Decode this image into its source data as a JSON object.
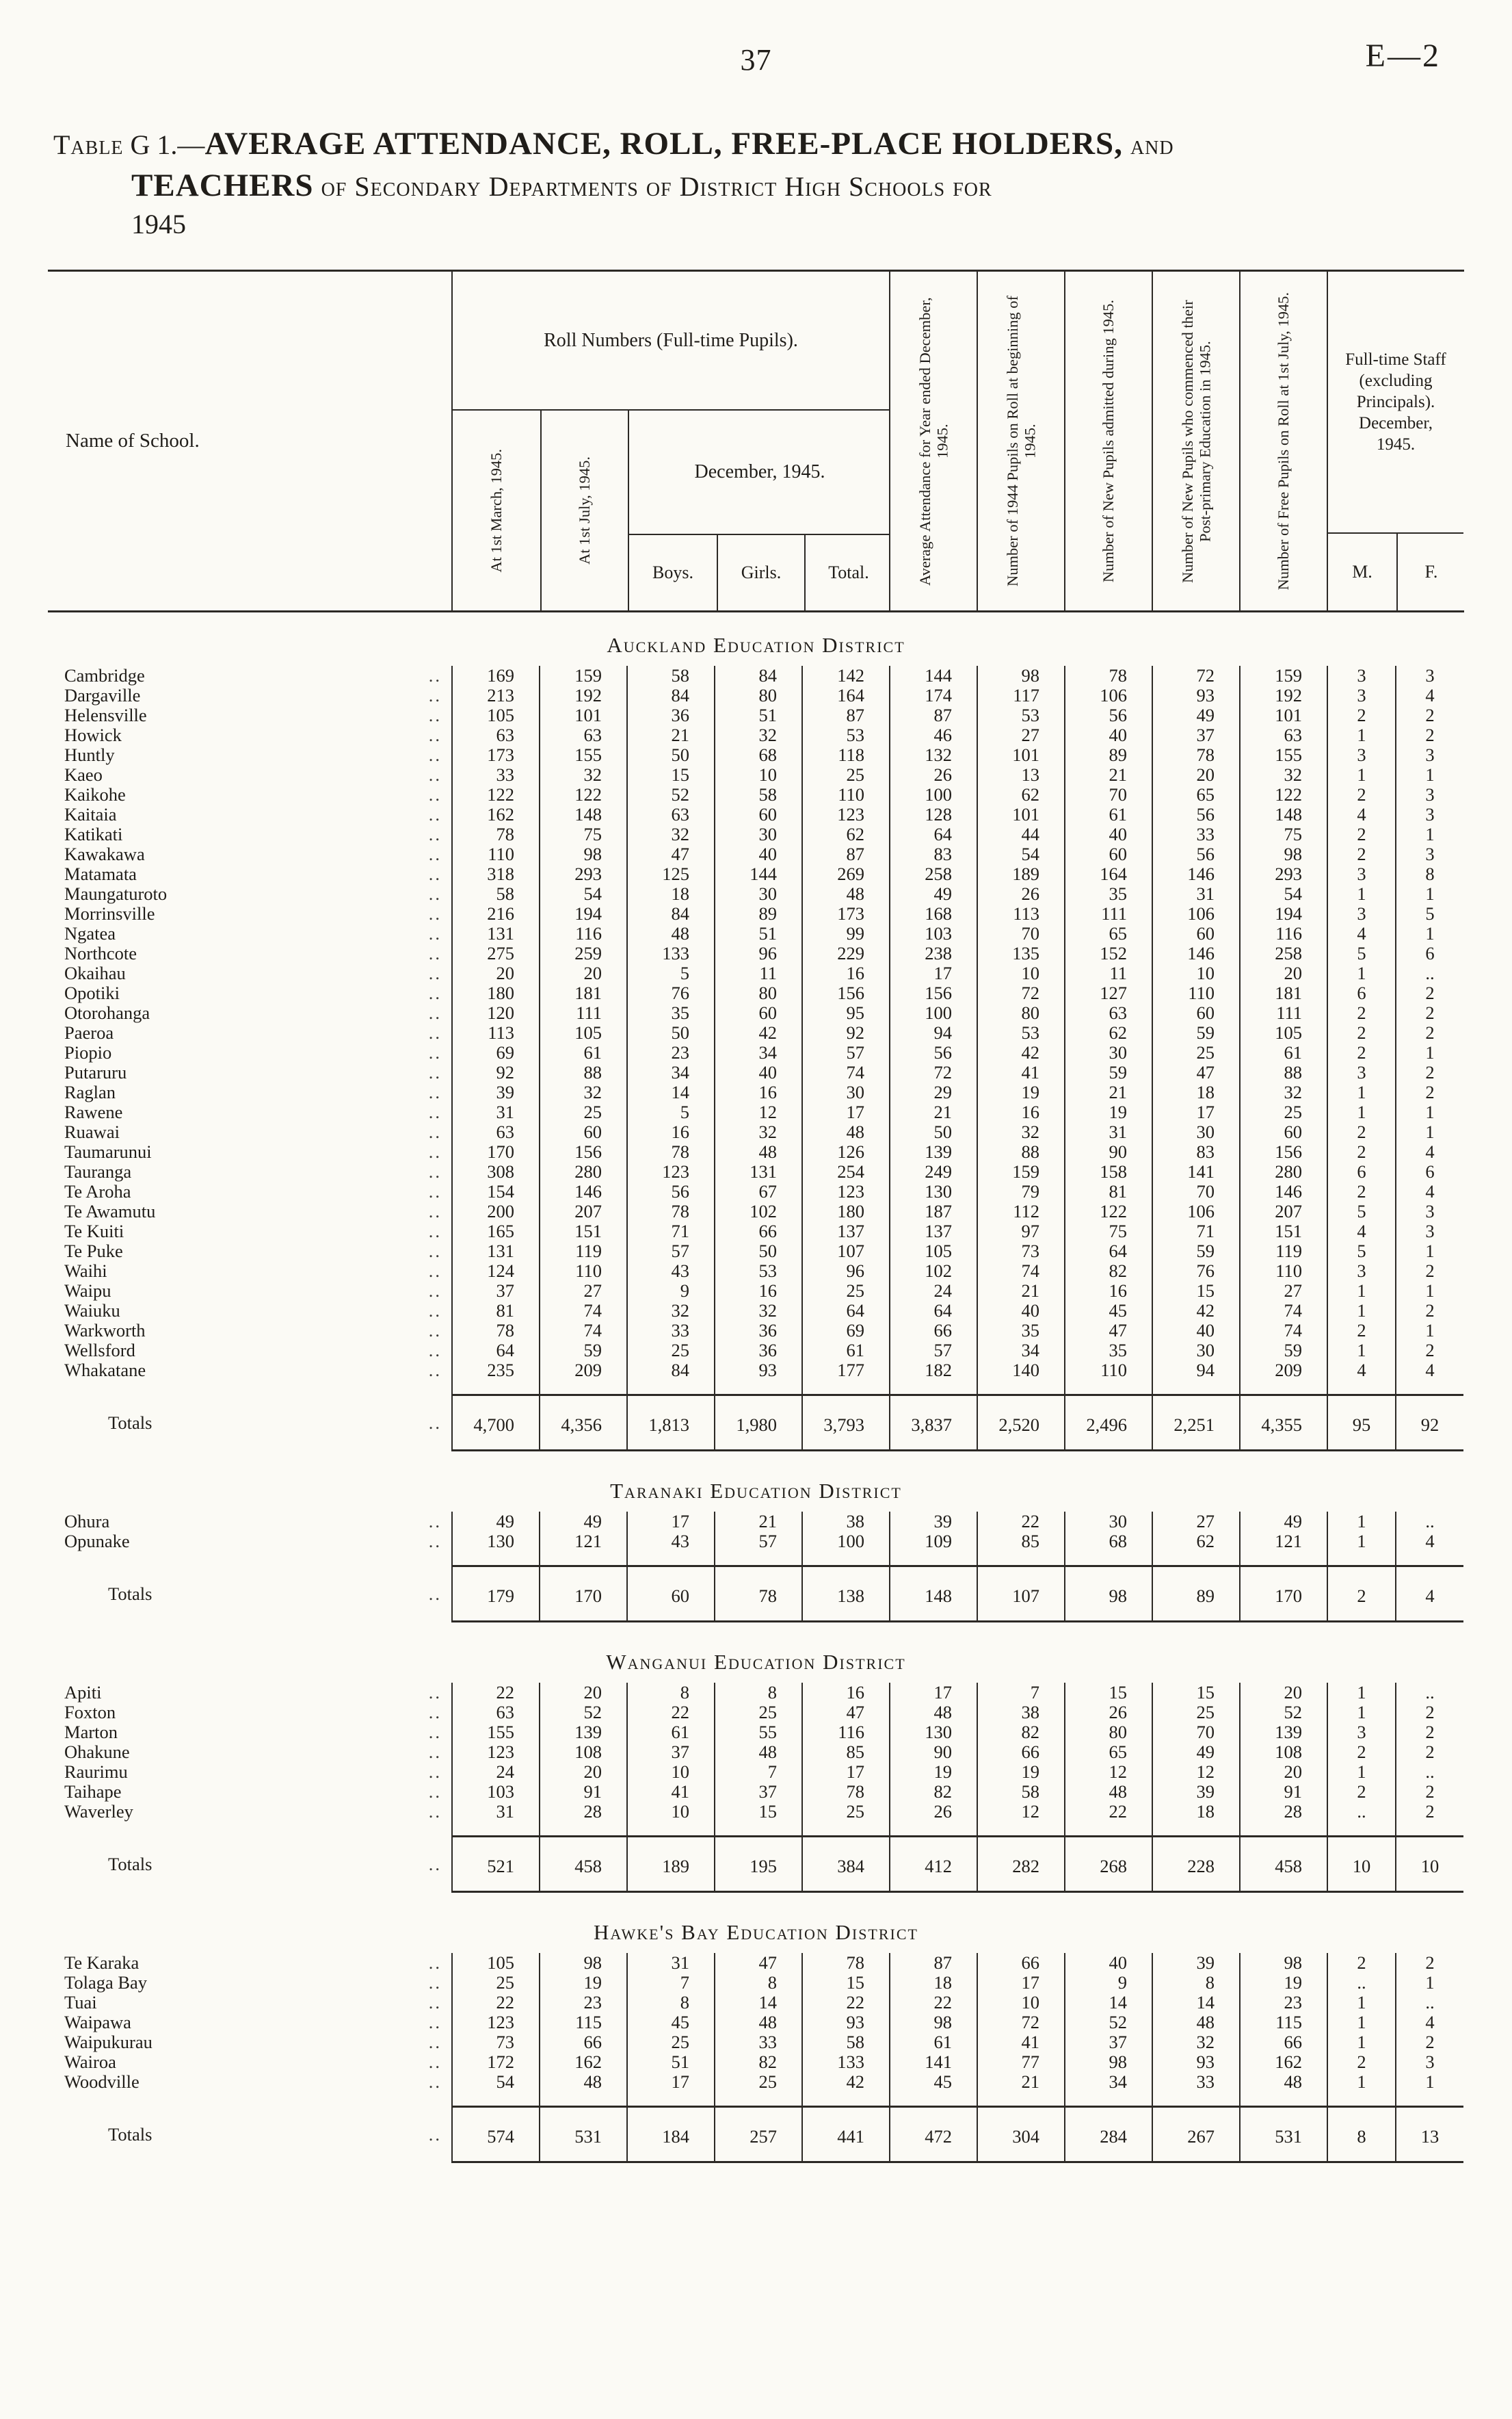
{
  "page": {
    "number": "37",
    "doc_ref": "E—2"
  },
  "title": {
    "line1_prefix": "Table",
    "line1_num": " G 1.—",
    "line1_bold": "AVERAGE ATTENDANCE, ROLL, FREE-PLACE HOLDERS,",
    "line1_and": " and",
    "line2_bold": "TEACHERS",
    "line2_rest": " of Secondary Departments of District High Schools for",
    "line3": "1945"
  },
  "table": {
    "leader": "..",
    "totals_label": "Totals",
    "columns": {
      "name": "Name of School.",
      "roll_group": "Roll Numbers (Full-time Pupils).",
      "march": "At 1st March, 1945.",
      "july": "At 1st July, 1945.",
      "december_group": "December, 1945.",
      "boys": "Boys.",
      "girls": "Girls.",
      "total": "Total.",
      "avg_attendance": "Average Attendance for Year ended December, 1945.",
      "pupils_1944": "Number of 1944 Pupils on Roll at beginning of 1945.",
      "new_pupils": "Number of New Pupils admitted during 1945.",
      "new_postprimary": "Number of New Pupils who commenced their Post-primary Education in 1945.",
      "free_pupils": "Number of Free Pupils on Roll at 1st July, 1945.",
      "staff_group": "Full-time Staff (excluding Principals). December, 1945.",
      "m": "M.",
      "f": "F."
    },
    "sections": [
      {
        "name": "Auckland Education District",
        "rows": [
          [
            "Cambridge",
            "169",
            "159",
            "58",
            "84",
            "142",
            "144",
            "98",
            "78",
            "72",
            "159",
            "3",
            "3"
          ],
          [
            "Dargaville",
            "213",
            "192",
            "84",
            "80",
            "164",
            "174",
            "117",
            "106",
            "93",
            "192",
            "3",
            "4"
          ],
          [
            "Helensville",
            "105",
            "101",
            "36",
            "51",
            "87",
            "87",
            "53",
            "56",
            "49",
            "101",
            "2",
            "2"
          ],
          [
            "Howick",
            "63",
            "63",
            "21",
            "32",
            "53",
            "46",
            "27",
            "40",
            "37",
            "63",
            "1",
            "2"
          ],
          [
            "Huntly",
            "173",
            "155",
            "50",
            "68",
            "118",
            "132",
            "101",
            "89",
            "78",
            "155",
            "3",
            "3"
          ],
          [
            "Kaeo",
            "33",
            "32",
            "15",
            "10",
            "25",
            "26",
            "13",
            "21",
            "20",
            "32",
            "1",
            "1"
          ],
          [
            "Kaikohe",
            "122",
            "122",
            "52",
            "58",
            "110",
            "100",
            "62",
            "70",
            "65",
            "122",
            "2",
            "3"
          ],
          [
            "Kaitaia",
            "162",
            "148",
            "63",
            "60",
            "123",
            "128",
            "101",
            "61",
            "56",
            "148",
            "4",
            "3"
          ],
          [
            "Katikati",
            "78",
            "75",
            "32",
            "30",
            "62",
            "64",
            "44",
            "40",
            "33",
            "75",
            "2",
            "1"
          ],
          [
            "Kawakawa",
            "110",
            "98",
            "47",
            "40",
            "87",
            "83",
            "54",
            "60",
            "56",
            "98",
            "2",
            "3"
          ],
          [
            "Matamata",
            "318",
            "293",
            "125",
            "144",
            "269",
            "258",
            "189",
            "164",
            "146",
            "293",
            "3",
            "8"
          ],
          [
            "Maungaturoto",
            "58",
            "54",
            "18",
            "30",
            "48",
            "49",
            "26",
            "35",
            "31",
            "54",
            "1",
            "1"
          ],
          [
            "Morrinsville",
            "216",
            "194",
            "84",
            "89",
            "173",
            "168",
            "113",
            "111",
            "106",
            "194",
            "3",
            "5"
          ],
          [
            "Ngatea",
            "131",
            "116",
            "48",
            "51",
            "99",
            "103",
            "70",
            "65",
            "60",
            "116",
            "4",
            "1"
          ],
          [
            "Northcote",
            "275",
            "259",
            "133",
            "96",
            "229",
            "238",
            "135",
            "152",
            "146",
            "258",
            "5",
            "6"
          ],
          [
            "Okaihau",
            "20",
            "20",
            "5",
            "11",
            "16",
            "17",
            "10",
            "11",
            "10",
            "20",
            "1",
            ".."
          ],
          [
            "Opotiki",
            "180",
            "181",
            "76",
            "80",
            "156",
            "156",
            "72",
            "127",
            "110",
            "181",
            "6",
            "2"
          ],
          [
            "Otorohanga",
            "120",
            "111",
            "35",
            "60",
            "95",
            "100",
            "80",
            "63",
            "60",
            "111",
            "2",
            "2"
          ],
          [
            "Paeroa",
            "113",
            "105",
            "50",
            "42",
            "92",
            "94",
            "53",
            "62",
            "59",
            "105",
            "2",
            "2"
          ],
          [
            "Piopio",
            "69",
            "61",
            "23",
            "34",
            "57",
            "56",
            "42",
            "30",
            "25",
            "61",
            "2",
            "1"
          ],
          [
            "Putaruru",
            "92",
            "88",
            "34",
            "40",
            "74",
            "72",
            "41",
            "59",
            "47",
            "88",
            "3",
            "2"
          ],
          [
            "Raglan",
            "39",
            "32",
            "14",
            "16",
            "30",
            "29",
            "19",
            "21",
            "18",
            "32",
            "1",
            "2"
          ],
          [
            "Rawene",
            "31",
            "25",
            "5",
            "12",
            "17",
            "21",
            "16",
            "19",
            "17",
            "25",
            "1",
            "1"
          ],
          [
            "Ruawai",
            "63",
            "60",
            "16",
            "32",
            "48",
            "50",
            "32",
            "31",
            "30",
            "60",
            "2",
            "1"
          ],
          [
            "Taumarunui",
            "170",
            "156",
            "78",
            "48",
            "126",
            "139",
            "88",
            "90",
            "83",
            "156",
            "2",
            "4"
          ],
          [
            "Tauranga",
            "308",
            "280",
            "123",
            "131",
            "254",
            "249",
            "159",
            "158",
            "141",
            "280",
            "6",
            "6"
          ],
          [
            "Te Aroha",
            "154",
            "146",
            "56",
            "67",
            "123",
            "130",
            "79",
            "81",
            "70",
            "146",
            "2",
            "4"
          ],
          [
            "Te Awamutu",
            "200",
            "207",
            "78",
            "102",
            "180",
            "187",
            "112",
            "122",
            "106",
            "207",
            "5",
            "3"
          ],
          [
            "Te Kuiti",
            "165",
            "151",
            "71",
            "66",
            "137",
            "137",
            "97",
            "75",
            "71",
            "151",
            "4",
            "3"
          ],
          [
            "Te Puke",
            "131",
            "119",
            "57",
            "50",
            "107",
            "105",
            "73",
            "64",
            "59",
            "119",
            "5",
            "1"
          ],
          [
            "Waihi",
            "124",
            "110",
            "43",
            "53",
            "96",
            "102",
            "74",
            "82",
            "76",
            "110",
            "3",
            "2"
          ],
          [
            "Waipu",
            "37",
            "27",
            "9",
            "16",
            "25",
            "24",
            "21",
            "16",
            "15",
            "27",
            "1",
            "1"
          ],
          [
            "Waiuku",
            "81",
            "74",
            "32",
            "32",
            "64",
            "64",
            "40",
            "45",
            "42",
            "74",
            "1",
            "2"
          ],
          [
            "Warkworth",
            "78",
            "74",
            "33",
            "36",
            "69",
            "66",
            "35",
            "47",
            "40",
            "74",
            "2",
            "1"
          ],
          [
            "Wellsford",
            "64",
            "59",
            "25",
            "36",
            "61",
            "57",
            "34",
            "35",
            "30",
            "59",
            "1",
            "2"
          ],
          [
            "Whakatane",
            "235",
            "209",
            "84",
            "93",
            "177",
            "182",
            "140",
            "110",
            "94",
            "209",
            "4",
            "4"
          ]
        ],
        "totals": [
          "4,700",
          "4,356",
          "1,813",
          "1,980",
          "3,793",
          "3,837",
          "2,520",
          "2,496",
          "2,251",
          "4,355",
          "95",
          "92"
        ]
      },
      {
        "name": "Taranaki Education District",
        "rows": [
          [
            "Ohura",
            "49",
            "49",
            "17",
            "21",
            "38",
            "39",
            "22",
            "30",
            "27",
            "49",
            "1",
            ".."
          ],
          [
            "Opunake",
            "130",
            "121",
            "43",
            "57",
            "100",
            "109",
            "85",
            "68",
            "62",
            "121",
            "1",
            "4"
          ]
        ],
        "totals": [
          "179",
          "170",
          "60",
          "78",
          "138",
          "148",
          "107",
          "98",
          "89",
          "170",
          "2",
          "4"
        ]
      },
      {
        "name": "Wanganui Education District",
        "rows": [
          [
            "Apiti",
            "22",
            "20",
            "8",
            "8",
            "16",
            "17",
            "7",
            "15",
            "15",
            "20",
            "1",
            ".."
          ],
          [
            "Foxton",
            "63",
            "52",
            "22",
            "25",
            "47",
            "48",
            "38",
            "26",
            "25",
            "52",
            "1",
            "2"
          ],
          [
            "Marton",
            "155",
            "139",
            "61",
            "55",
            "116",
            "130",
            "82",
            "80",
            "70",
            "139",
            "3",
            "2"
          ],
          [
            "Ohakune",
            "123",
            "108",
            "37",
            "48",
            "85",
            "90",
            "66",
            "65",
            "49",
            "108",
            "2",
            "2"
          ],
          [
            "Raurimu",
            "24",
            "20",
            "10",
            "7",
            "17",
            "19",
            "19",
            "12",
            "12",
            "20",
            "1",
            ".."
          ],
          [
            "Taihape",
            "103",
            "91",
            "41",
            "37",
            "78",
            "82",
            "58",
            "48",
            "39",
            "91",
            "2",
            "2"
          ],
          [
            "Waverley",
            "31",
            "28",
            "10",
            "15",
            "25",
            "26",
            "12",
            "22",
            "18",
            "28",
            "..",
            "2"
          ]
        ],
        "totals": [
          "521",
          "458",
          "189",
          "195",
          "384",
          "412",
          "282",
          "268",
          "228",
          "458",
          "10",
          "10"
        ]
      },
      {
        "name": "Hawke's Bay Education District",
        "rows": [
          [
            "Te Karaka",
            "105",
            "98",
            "31",
            "47",
            "78",
            "87",
            "66",
            "40",
            "39",
            "98",
            "2",
            "2"
          ],
          [
            "Tolaga Bay",
            "25",
            "19",
            "7",
            "8",
            "15",
            "18",
            "17",
            "9",
            "8",
            "19",
            "..",
            "1"
          ],
          [
            "Tuai",
            "22",
            "23",
            "8",
            "14",
            "22",
            "22",
            "10",
            "14",
            "14",
            "23",
            "1",
            ".."
          ],
          [
            "Waipawa",
            "123",
            "115",
            "45",
            "48",
            "93",
            "98",
            "72",
            "52",
            "48",
            "115",
            "1",
            "4"
          ],
          [
            "Waipukurau",
            "73",
            "66",
            "25",
            "33",
            "58",
            "61",
            "41",
            "37",
            "32",
            "66",
            "1",
            "2"
          ],
          [
            "Wairoa",
            "172",
            "162",
            "51",
            "82",
            "133",
            "141",
            "77",
            "98",
            "93",
            "162",
            "2",
            "3"
          ],
          [
            "Woodville",
            "54",
            "48",
            "17",
            "25",
            "42",
            "45",
            "21",
            "34",
            "33",
            "48",
            "1",
            "1"
          ]
        ],
        "totals": [
          "574",
          "531",
          "184",
          "257",
          "441",
          "472",
          "304",
          "284",
          "267",
          "531",
          "8",
          "13"
        ]
      }
    ]
  }
}
